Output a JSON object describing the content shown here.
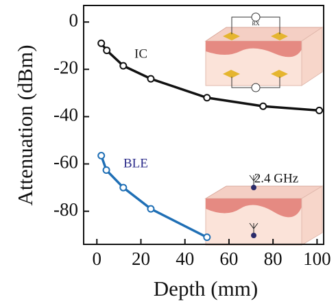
{
  "chart_data": {
    "type": "line",
    "x_label": "Depth (mm)",
    "y_label": "Attenuation (dBm)",
    "xlim": [
      -6,
      103
    ],
    "ylim": [
      -94,
      7
    ],
    "xticks": [
      0,
      20,
      40,
      60,
      80,
      100
    ],
    "yticks": [
      0,
      -20,
      -40,
      -60,
      -80
    ],
    "series": [
      {
        "name": "IC",
        "color": "#111111",
        "label_color": "#222222",
        "x": [
          2,
          4.5,
          12,
          24.5,
          50,
          75.5,
          101
        ],
        "values": [
          -9,
          -12,
          -18.5,
          -24,
          -32,
          -35.6,
          -37.4
        ]
      },
      {
        "name": "BLE",
        "color": "#1f6fb5",
        "label_color": "#2b2b8a",
        "x": [
          2,
          4.3,
          12,
          24.5,
          50
        ],
        "values": [
          -56.5,
          -62.6,
          -70,
          -79,
          -91
        ]
      }
    ],
    "annotations": [
      "RX",
      "2.4 GHz"
    ]
  }
}
